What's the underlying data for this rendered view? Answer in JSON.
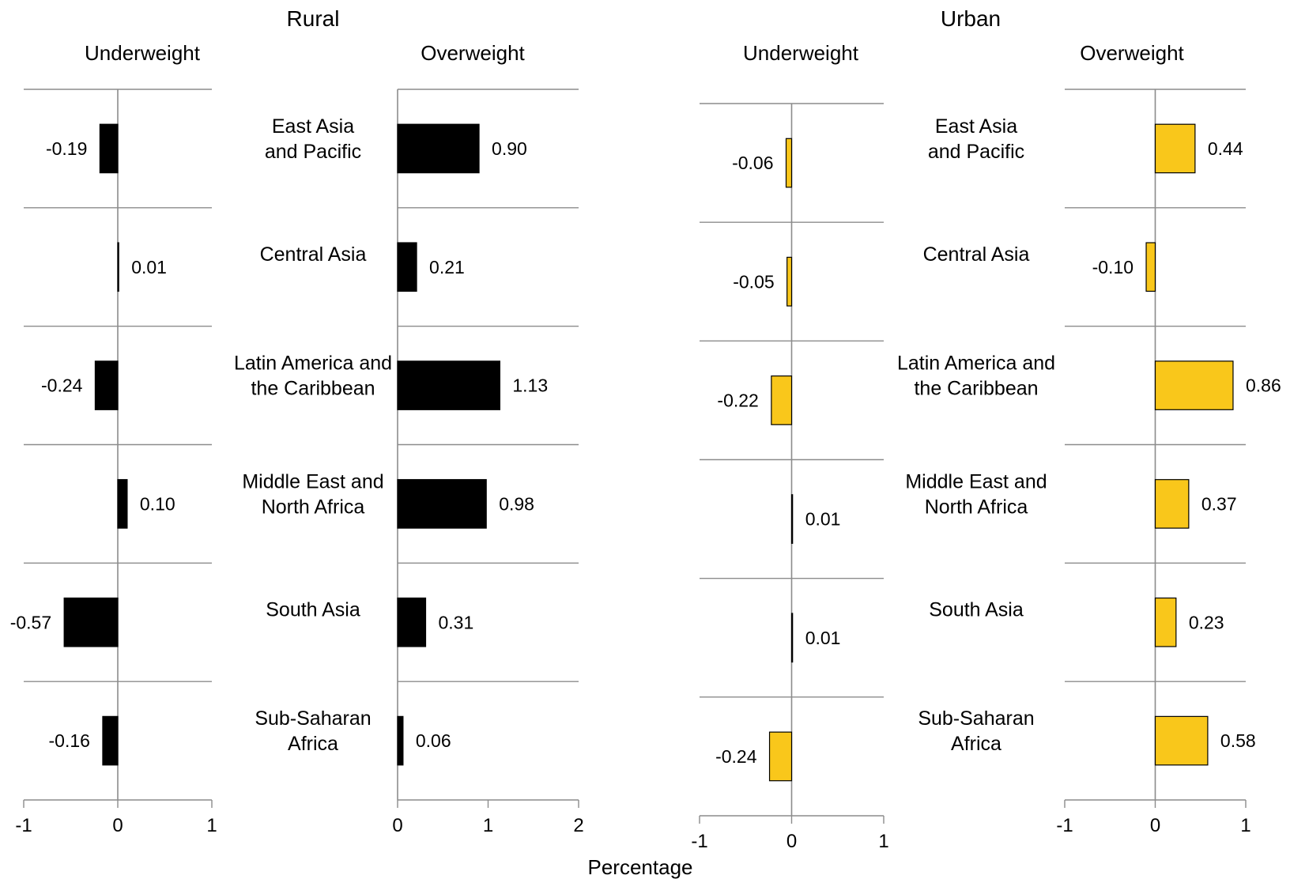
{
  "chart_data": {
    "type": "bar",
    "orientation": "horizontal",
    "xlabel": "Percentage",
    "categories": [
      "East Asia and Pacific",
      "Central Asia",
      "Latin America and the Caribbean",
      "Middle East and North Africa",
      "South Asia",
      "Sub-Saharan Africa"
    ],
    "category_labels": [
      [
        "East Asia",
        "and Pacific"
      ],
      [
        "Central Asia"
      ],
      [
        "Latin America and",
        "the Caribbean"
      ],
      [
        "Middle East and",
        "North Africa"
      ],
      [
        "South Asia"
      ],
      [
        "Sub-Saharan",
        "Africa"
      ]
    ],
    "groups": [
      {
        "title": "Rural",
        "bar_color": "#000000",
        "bar_stroke": "#000000",
        "panels": [
          {
            "title": "Underweight",
            "xlim": [
              -1,
              1
            ],
            "ticks": [
              -1,
              0,
              1
            ],
            "tick_labels": [
              "-1",
              "0",
              "1"
            ],
            "values": [
              -0.19,
              0.01,
              -0.24,
              0.1,
              -0.57,
              -0.16
            ],
            "value_labels": [
              "-0.19",
              "0.01",
              "-0.24",
              "0.10",
              "-0.57",
              "-0.16"
            ]
          },
          {
            "title": "Overweight",
            "xlim": [
              0,
              2
            ],
            "ticks": [
              0,
              1,
              2
            ],
            "tick_labels": [
              "0",
              "1",
              "2"
            ],
            "values": [
              0.9,
              0.21,
              1.13,
              0.98,
              0.31,
              0.06
            ],
            "value_labels": [
              "0.90",
              "0.21",
              "1.13",
              "0.98",
              "0.31",
              "0.06"
            ]
          }
        ]
      },
      {
        "title": "Urban",
        "bar_color": "#f9c71b",
        "bar_stroke": "#000000",
        "panels": [
          {
            "title": "Underweight",
            "xlim": [
              -1,
              1
            ],
            "ticks": [
              -1,
              0,
              1
            ],
            "tick_labels": [
              "-1",
              "0",
              "1"
            ],
            "values": [
              -0.06,
              -0.05,
              -0.22,
              0.01,
              0.01,
              -0.24
            ],
            "value_labels": [
              "-0.06",
              "-0.05",
              "-0.22",
              "0.01",
              "0.01",
              "-0.24"
            ]
          },
          {
            "title": "Overweight",
            "xlim": [
              -1,
              1
            ],
            "ticks": [
              -1,
              0,
              1
            ],
            "tick_labels": [
              "-1",
              "0",
              "1"
            ],
            "values": [
              0.44,
              -0.1,
              0.86,
              0.37,
              0.23,
              0.58
            ],
            "value_labels": [
              "0.44",
              "-0.10",
              "0.86",
              "0.37",
              "0.23",
              "0.58"
            ]
          }
        ]
      }
    ]
  }
}
